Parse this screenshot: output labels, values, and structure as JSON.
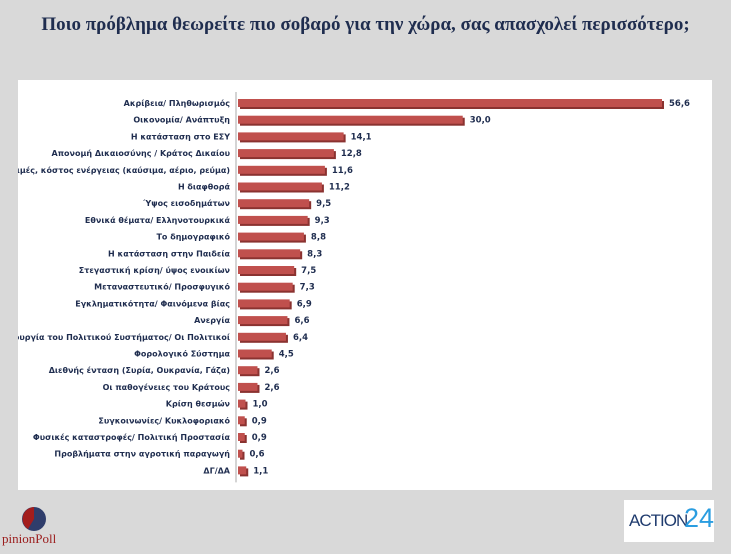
{
  "chart_data": {
    "type": "bar",
    "orientation": "horizontal",
    "title": "Ποιο πρόβλημα θεωρείτε πιο σοβαρό για την χώρα, σας απασχολεί περισσότερο;",
    "categories": [
      "Ακρίβεια/ Πληθωρισμός",
      "Οικονομία/ Ανάπτυξη",
      "Η κατάσταση στο ΕΣΥ",
      "Απονομή Δικαιοσύνης / Κράτος Δικαίου",
      "Τιμές, κόστος ενέργειας (καύσιμα, αέριο, ρεύμα)",
      "Η διαφθορά",
      "Ύψος εισοδημάτων",
      "Εθνικά θέματα/ Ελληνοτουρκικά",
      "Το δημογραφικό",
      "Η κατάσταση στην Παιδεία",
      "Στεγαστική κρίση/ ύψος ενοικίων",
      "Μεταναστευτικό/ Προσφυγικό",
      "Εγκληματικότητα/ Φαινόμενα βίας",
      "Ανεργία",
      "Η λειτουργία του Πολιτικού Συστήματος/ Οι Πολιτικοί",
      "Φορολογικό Σύστημα",
      "Διεθνής ένταση (Συρία, Ουκρανία, Γάζα)",
      "Οι παθογένειες του Κράτους",
      "Κρίση θεσμών",
      "Συγκοινωνίες/ Κυκλοφοριακό",
      "Φυσικές καταστροφές/ Πολιτική Προστασία",
      "Προβλήματα στην αγροτική παραγωγή",
      "ΔΓ/ΔΑ"
    ],
    "values": [
      56.6,
      30.0,
      14.1,
      12.8,
      11.6,
      11.2,
      9.5,
      9.3,
      8.8,
      8.3,
      7.5,
      7.3,
      6.9,
      6.6,
      6.4,
      4.5,
      2.6,
      2.6,
      1.0,
      0.9,
      0.9,
      0.6,
      1.1
    ],
    "value_labels": [
      "56,6",
      "30,0",
      "14,1",
      "12,8",
      "11,6",
      "11,2",
      "9,5",
      "9,3",
      "8,8",
      "8,3",
      "7,5",
      "7,3",
      "6,9",
      "6,6",
      "6,4",
      "4,5",
      "2,6",
      "2,6",
      "1,0",
      "0,9",
      "0,9",
      "0,6",
      "1,1"
    ],
    "xlim": [
      0,
      60
    ],
    "grid": false,
    "bar_color": "#c0504d"
  },
  "logos": {
    "left": "OpinionPoll",
    "right_text": "ACTION",
    "right_num": "24"
  }
}
